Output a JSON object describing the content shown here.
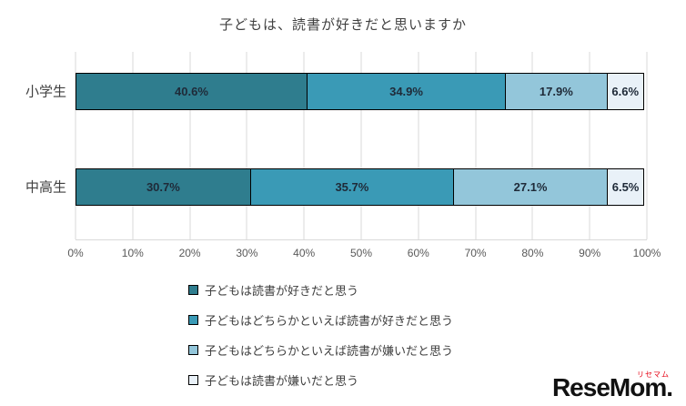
{
  "chart_data": {
    "type": "bar",
    "variant": "horizontal-stacked",
    "title": "子どもは、読書が好きだと思いますか",
    "categories": [
      "小学生",
      "中高生"
    ],
    "series": [
      {
        "name": "子どもは読書が好きだと思う",
        "color": "#2f7d8e",
        "values": [
          40.6,
          30.7
        ],
        "labels": [
          "40.6%",
          "30.7%"
        ]
      },
      {
        "name": "子どもはどちらかといえば読書が好きだと思う",
        "color": "#3a9ab6",
        "values": [
          34.9,
          35.7
        ],
        "labels": [
          "34.9%",
          "35.7%"
        ]
      },
      {
        "name": "子どもはどちらかといえば読書が嫌いだと思う",
        "color": "#93c6da",
        "values": [
          17.9,
          27.1
        ],
        "labels": [
          "17.9%",
          "27.1%"
        ]
      },
      {
        "name": "子どもは読書が嫌いだと思う",
        "color": "#e9f1f8",
        "values": [
          6.6,
          6.5
        ],
        "labels": [
          "6.6%",
          "6.5%"
        ]
      }
    ],
    "x_ticks": [
      "0%",
      "10%",
      "20%",
      "30%",
      "40%",
      "50%",
      "60%",
      "70%",
      "80%",
      "90%",
      "100%"
    ],
    "xlim": [
      0,
      100
    ],
    "grid": true,
    "legend_position": "bottom-left"
  },
  "logo": {
    "text": "ReseMom",
    "suffix": ".",
    "katakana": "リセマム"
  }
}
